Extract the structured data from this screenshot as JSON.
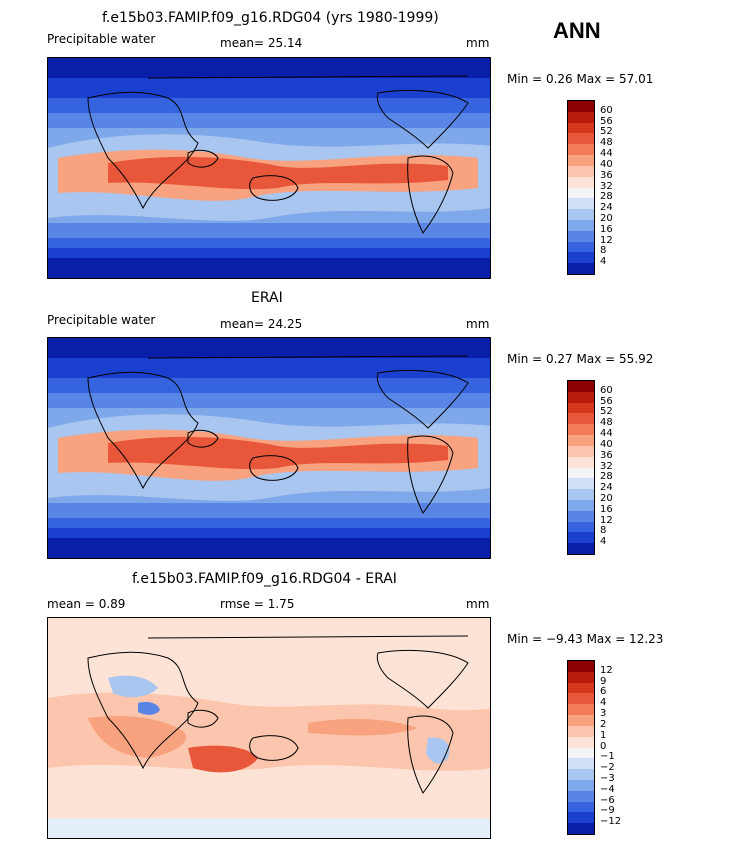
{
  "season": "ANN",
  "panels": [
    {
      "title": "f.e15b03.FAMIP.f09_g16.RDG04 (yrs 1980-1999)",
      "variable": "Precipitable water",
      "stat1": "mean=  25.14",
      "stat2": "",
      "units": "mm",
      "minmax": "Min =    0.26 Max =  57.01",
      "colorbar": {
        "labels": [
          "60",
          "56",
          "52",
          "48",
          "44",
          "40",
          "36",
          "32",
          "28",
          "24",
          "20",
          "16",
          "12",
          "8",
          "4"
        ],
        "colors": [
          "#8b0000",
          "#b81c0c",
          "#d6381e",
          "#e8573a",
          "#f27b58",
          "#f8a27f",
          "#fbc6ad",
          "#fde3d6",
          "#f4f4f4",
          "#cfe0f6",
          "#a8c6f0",
          "#7fa8ea",
          "#5986e6",
          "#3663de",
          "#1b40cf",
          "#0a1fa8"
        ]
      },
      "map_palette": [
        "#0a1fa8",
        "#1b40cf",
        "#3663de",
        "#5986e6",
        "#7fa8ea",
        "#a8c6f0",
        "#f8a27f",
        "#e8573a"
      ]
    },
    {
      "title": "ERAI",
      "variable": "Precipitable water",
      "stat1": "mean=  24.25",
      "stat2": "",
      "units": "mm",
      "minmax": "Min =    0.27 Max =  55.92",
      "colorbar": {
        "labels": [
          "60",
          "56",
          "52",
          "48",
          "44",
          "40",
          "36",
          "32",
          "28",
          "24",
          "20",
          "16",
          "12",
          "8",
          "4"
        ],
        "colors": [
          "#8b0000",
          "#b81c0c",
          "#d6381e",
          "#e8573a",
          "#f27b58",
          "#f8a27f",
          "#fbc6ad",
          "#fde3d6",
          "#f4f4f4",
          "#cfe0f6",
          "#a8c6f0",
          "#7fa8ea",
          "#5986e6",
          "#3663de",
          "#1b40cf",
          "#0a1fa8"
        ]
      },
      "map_palette": [
        "#0a1fa8",
        "#1b40cf",
        "#3663de",
        "#5986e6",
        "#7fa8ea",
        "#a8c6f0",
        "#f8a27f",
        "#e8573a"
      ]
    },
    {
      "title": "f.e15b03.FAMIP.f09_g16.RDG04 - ERAI",
      "variable": "",
      "stat1": "mean =    0.89",
      "stat2": "rmse =    1.75",
      "units": "mm",
      "minmax": "Min =  −9.43 Max =  12.23",
      "colorbar": {
        "labels": [
          "12",
          "9",
          "6",
          "4",
          "3",
          "2",
          "1",
          "0",
          "−1",
          "−2",
          "−3",
          "−4",
          "−6",
          "−9",
          "−12"
        ],
        "colors": [
          "#8b0000",
          "#b81c0c",
          "#d6381e",
          "#e8573a",
          "#f27b58",
          "#f8a27f",
          "#fbc6ad",
          "#fde3d6",
          "#f4f4f4",
          "#cfe0f6",
          "#a8c6f0",
          "#7fa8ea",
          "#5986e6",
          "#3663de",
          "#1b40cf",
          "#0a1fa8"
        ]
      },
      "map_palette": [
        "#fde3d6",
        "#fbc6ad",
        "#f8a27f",
        "#e8573a",
        "#a8c6f0",
        "#5986e6"
      ]
    }
  ]
}
